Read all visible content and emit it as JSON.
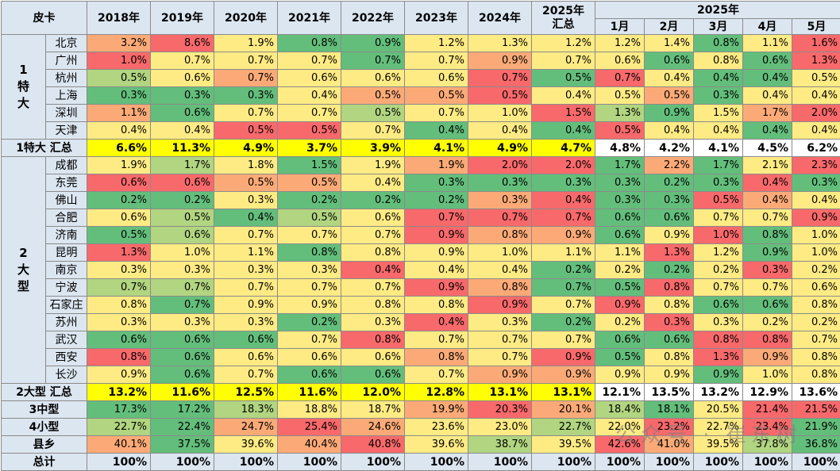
{
  "header": {
    "corner": "皮卡",
    "years": [
      "2018年",
      "2019年",
      "2020年",
      "2021年",
      "2022年",
      "2023年",
      "2024年"
    ],
    "ytd_line1": "2025年",
    "ytd_line2": "汇总",
    "group_2025": "2025年",
    "months": [
      "1月",
      "2月",
      "3月",
      "4月",
      "5月"
    ]
  },
  "colors": {
    "red": "#f8696b",
    "orange": "#fbaa77",
    "yellow": "#ffeb84",
    "lightgreen": "#b1d580",
    "green": "#63be7b",
    "header": "#dce6f1",
    "highlight": "#ffff00"
  },
  "sections": [
    {
      "group_label": "1 特 大",
      "cities": [
        {
          "name": "北京",
          "values": [
            "3.2%",
            "8.6%",
            "1.9%",
            "0.8%",
            "0.9%",
            "1.2%",
            "1.3%",
            "1.2%",
            "1.2%",
            "1.4%",
            "0.8%",
            "1.1%",
            "1.6%"
          ],
          "colors": [
            "orange",
            "red",
            "yellow",
            "green",
            "green",
            "yellow",
            "yellow",
            "yellow",
            "yellow",
            "yellow",
            "green",
            "yellow",
            "red"
          ]
        },
        {
          "name": "广州",
          "values": [
            "1.0%",
            "0.7%",
            "0.7%",
            "0.7%",
            "0.7%",
            "0.7%",
            "0.9%",
            "0.7%",
            "0.6%",
            "0.6%",
            "0.8%",
            "0.6%",
            "1.3%"
          ],
          "colors": [
            "red",
            "yellow",
            "yellow",
            "yellow",
            "green",
            "yellow",
            "orange",
            "yellow",
            "yellow",
            "green",
            "yellow",
            "green",
            "red"
          ]
        },
        {
          "name": "杭州",
          "values": [
            "0.5%",
            "0.6%",
            "0.7%",
            "0.6%",
            "0.6%",
            "0.6%",
            "0.7%",
            "0.5%",
            "0.7%",
            "0.4%",
            "0.4%",
            "0.4%",
            "0.5%"
          ],
          "colors": [
            "lightgreen",
            "yellow",
            "orange",
            "yellow",
            "yellow",
            "yellow",
            "red",
            "green",
            "red",
            "yellow",
            "green",
            "green",
            "yellow"
          ]
        },
        {
          "name": "上海",
          "values": [
            "0.3%",
            "0.3%",
            "0.3%",
            "0.4%",
            "0.5%",
            "0.5%",
            "0.5%",
            "0.4%",
            "0.5%",
            "0.5%",
            "0.3%",
            "0.4%",
            "0.4%"
          ],
          "colors": [
            "green",
            "green",
            "green",
            "yellow",
            "orange",
            "orange",
            "red",
            "yellow",
            "yellow",
            "orange",
            "green",
            "yellow",
            "yellow"
          ]
        },
        {
          "name": "深圳",
          "values": [
            "1.1%",
            "0.6%",
            "0.7%",
            "0.7%",
            "0.5%",
            "0.7%",
            "1.0%",
            "1.5%",
            "1.3%",
            "0.9%",
            "1.5%",
            "1.7%",
            "2.0%"
          ],
          "colors": [
            "orange",
            "green",
            "yellow",
            "yellow",
            "lightgreen",
            "yellow",
            "yellow",
            "red",
            "lightgreen",
            "green",
            "yellow",
            "orange",
            "red"
          ]
        },
        {
          "name": "天津",
          "values": [
            "0.4%",
            "0.4%",
            "0.5%",
            "0.5%",
            "0.7%",
            "0.4%",
            "0.4%",
            "0.4%",
            "0.5%",
            "0.4%",
            "0.4%",
            "0.4%",
            "0.4%"
          ],
          "colors": [
            "yellow",
            "yellow",
            "red",
            "red",
            "yellow",
            "green",
            "yellow",
            "green",
            "red",
            "yellow",
            "yellow",
            "green",
            "yellow"
          ]
        }
      ],
      "summary": {
        "label": "1特大 汇总",
        "values": [
          "6.6%",
          "11.3%",
          "4.9%",
          "3.7%",
          "3.9%",
          "4.1%",
          "4.9%",
          "4.7%",
          "4.8%",
          "4.2%",
          "4.1%",
          "4.5%",
          "6.2%"
        ]
      }
    },
    {
      "group_label": "2 大 型",
      "cities": [
        {
          "name": "成都",
          "values": [
            "1.9%",
            "1.7%",
            "1.8%",
            "1.5%",
            "1.9%",
            "1.9%",
            "2.0%",
            "2.0%",
            "1.7%",
            "2.2%",
            "1.7%",
            "2.1%",
            "2.3%"
          ],
          "colors": [
            "yellow",
            "lightgreen",
            "yellow",
            "green",
            "yellow",
            "orange",
            "red",
            "red",
            "green",
            "orange",
            "green",
            "yellow",
            "red"
          ]
        },
        {
          "name": "东莞",
          "values": [
            "0.6%",
            "0.6%",
            "0.5%",
            "0.5%",
            "0.4%",
            "0.3%",
            "0.3%",
            "0.3%",
            "0.3%",
            "0.2%",
            "0.3%",
            "0.4%",
            "0.3%"
          ],
          "colors": [
            "red",
            "red",
            "orange",
            "orange",
            "yellow",
            "green",
            "green",
            "green",
            "green",
            "green",
            "green",
            "red",
            "green"
          ]
        },
        {
          "name": "佛山",
          "values": [
            "0.2%",
            "0.2%",
            "0.3%",
            "0.2%",
            "0.2%",
            "0.2%",
            "0.3%",
            "0.4%",
            "0.3%",
            "0.3%",
            "0.5%",
            "0.4%",
            "0.4%"
          ],
          "colors": [
            "green",
            "green",
            "yellow",
            "green",
            "green",
            "green",
            "orange",
            "red",
            "green",
            "green",
            "red",
            "orange",
            "yellow"
          ]
        },
        {
          "name": "合肥",
          "values": [
            "0.6%",
            "0.5%",
            "0.4%",
            "0.5%",
            "0.6%",
            "0.7%",
            "0.7%",
            "0.7%",
            "0.6%",
            "0.6%",
            "0.7%",
            "0.7%",
            "0.9%"
          ],
          "colors": [
            "yellow",
            "lightgreen",
            "green",
            "lightgreen",
            "yellow",
            "red",
            "red",
            "red",
            "green",
            "green",
            "yellow",
            "yellow",
            "red"
          ]
        },
        {
          "name": "济南",
          "values": [
            "0.5%",
            "0.6%",
            "0.7%",
            "0.7%",
            "0.7%",
            "0.9%",
            "0.8%",
            "0.9%",
            "0.6%",
            "0.9%",
            "1.0%",
            "0.8%",
            "1.0%"
          ],
          "colors": [
            "green",
            "lightgreen",
            "yellow",
            "yellow",
            "yellow",
            "red",
            "orange",
            "orange",
            "green",
            "yellow",
            "red",
            "green",
            "yellow"
          ]
        },
        {
          "name": "昆明",
          "values": [
            "1.3%",
            "1.0%",
            "1.1%",
            "0.8%",
            "0.8%",
            "0.9%",
            "1.0%",
            "1.1%",
            "1.1%",
            "1.3%",
            "1.2%",
            "0.9%",
            "1.0%"
          ],
          "colors": [
            "red",
            "yellow",
            "yellow",
            "green",
            "yellow",
            "yellow",
            "yellow",
            "yellow",
            "yellow",
            "red",
            "yellow",
            "green",
            "yellow"
          ]
        },
        {
          "name": "南京",
          "values": [
            "0.3%",
            "0.3%",
            "0.3%",
            "0.3%",
            "0.4%",
            "0.4%",
            "0.4%",
            "0.2%",
            "0.2%",
            "0.2%",
            "0.2%",
            "0.3%",
            "0.2%"
          ],
          "colors": [
            "yellow",
            "yellow",
            "yellow",
            "yellow",
            "red",
            "yellow",
            "yellow",
            "green",
            "yellow",
            "green",
            "yellow",
            "red",
            "yellow"
          ]
        },
        {
          "name": "宁波",
          "values": [
            "0.7%",
            "0.7%",
            "0.7%",
            "0.7%",
            "0.7%",
            "0.9%",
            "0.8%",
            "0.7%",
            "0.5%",
            "0.8%",
            "0.7%",
            "0.7%",
            "0.6%"
          ],
          "colors": [
            "lightgreen",
            "lightgreen",
            "yellow",
            "yellow",
            "yellow",
            "red",
            "orange",
            "green",
            "green",
            "red",
            "yellow",
            "yellow",
            "yellow"
          ]
        },
        {
          "name": "石家庄",
          "values": [
            "0.8%",
            "0.7%",
            "0.9%",
            "0.9%",
            "0.8%",
            "0.8%",
            "0.9%",
            "0.7%",
            "0.9%",
            "0.8%",
            "0.6%",
            "0.6%",
            "0.8%"
          ],
          "colors": [
            "yellow",
            "green",
            "yellow",
            "yellow",
            "yellow",
            "yellow",
            "red",
            "yellow",
            "red",
            "yellow",
            "green",
            "green",
            "yellow"
          ]
        },
        {
          "name": "苏州",
          "values": [
            "0.3%",
            "0.3%",
            "0.3%",
            "0.2%",
            "0.3%",
            "0.4%",
            "0.3%",
            "0.2%",
            "0.2%",
            "0.3%",
            "0.3%",
            "0.2%",
            "0.2%"
          ],
          "colors": [
            "yellow",
            "yellow",
            "yellow",
            "green",
            "yellow",
            "red",
            "yellow",
            "green",
            "yellow",
            "red",
            "yellow",
            "yellow",
            "yellow"
          ]
        },
        {
          "name": "武汉",
          "values": [
            "0.6%",
            "0.6%",
            "0.6%",
            "0.7%",
            "0.8%",
            "0.7%",
            "0.7%",
            "0.7%",
            "0.6%",
            "0.6%",
            "0.8%",
            "0.8%",
            "0.7%"
          ],
          "colors": [
            "green",
            "green",
            "green",
            "yellow",
            "red",
            "yellow",
            "yellow",
            "yellow",
            "green",
            "green",
            "red",
            "red",
            "yellow"
          ]
        },
        {
          "name": "西安",
          "values": [
            "0.8%",
            "0.6%",
            "0.6%",
            "0.6%",
            "0.6%",
            "0.8%",
            "0.7%",
            "0.9%",
            "0.5%",
            "0.8%",
            "1.3%",
            "0.9%",
            "0.8%"
          ],
          "colors": [
            "red",
            "green",
            "yellow",
            "yellow",
            "yellow",
            "orange",
            "yellow",
            "red",
            "green",
            "yellow",
            "red",
            "orange",
            "yellow"
          ]
        },
        {
          "name": "长沙",
          "values": [
            "0.9%",
            "0.6%",
            "0.7%",
            "0.6%",
            "0.6%",
            "0.7%",
            "0.9%",
            "0.9%",
            "0.9%",
            "0.9%",
            "0.9%",
            "1.0%",
            "0.8%"
          ],
          "colors": [
            "yellow",
            "green",
            "yellow",
            "green",
            "green",
            "yellow",
            "orange",
            "orange",
            "yellow",
            "yellow",
            "green",
            "yellow",
            "yellow"
          ]
        }
      ],
      "summary": {
        "label": "2大型 汇总",
        "values": [
          "13.2%",
          "11.6%",
          "12.5%",
          "11.6%",
          "12.0%",
          "12.8%",
          "13.1%",
          "13.1%",
          "12.1%",
          "13.5%",
          "13.2%",
          "12.9%",
          "13.6%"
        ]
      }
    }
  ],
  "others": [
    {
      "label": "3中型",
      "values": [
        "17.3%",
        "17.2%",
        "18.3%",
        "18.8%",
        "18.7%",
        "19.9%",
        "20.3%",
        "20.1%",
        "18.4%",
        "18.1%",
        "20.5%",
        "21.4%",
        "21.5%"
      ],
      "colors": [
        "green",
        "green",
        "lightgreen",
        "yellow",
        "yellow",
        "orange",
        "red",
        "orange",
        "lightgreen",
        "green",
        "yellow",
        "red",
        "red"
      ]
    },
    {
      "label": "4小型",
      "values": [
        "22.7%",
        "22.4%",
        "24.7%",
        "25.4%",
        "24.6%",
        "23.6%",
        "23.0%",
        "22.7%",
        "22.0%",
        "23.2%",
        "22.7%",
        "23.4%",
        "21.9%"
      ],
      "colors": [
        "lightgreen",
        "green",
        "orange",
        "red",
        "orange",
        "yellow",
        "yellow",
        "lightgreen",
        "yellow",
        "red",
        "yellow",
        "red",
        "green"
      ]
    },
    {
      "label": "县乡",
      "values": [
        "40.1%",
        "37.5%",
        "39.6%",
        "40.4%",
        "40.8%",
        "39.6%",
        "38.7%",
        "39.5%",
        "42.6%",
        "41.0%",
        "39.5%",
        "37.8%",
        "36.8%"
      ],
      "colors": [
        "orange",
        "green",
        "yellow",
        "orange",
        "red",
        "yellow",
        "lightgreen",
        "yellow",
        "red",
        "orange",
        "yellow",
        "lightgreen",
        "green"
      ]
    }
  ],
  "total": {
    "label": "总计",
    "values": [
      "100%",
      "100%",
      "100%",
      "100%",
      "100%",
      "100%",
      "100%",
      "100%",
      "100%",
      "100%",
      "100%",
      "100%",
      "100%"
    ]
  },
  "watermark": "公众号 · 崔东树"
}
